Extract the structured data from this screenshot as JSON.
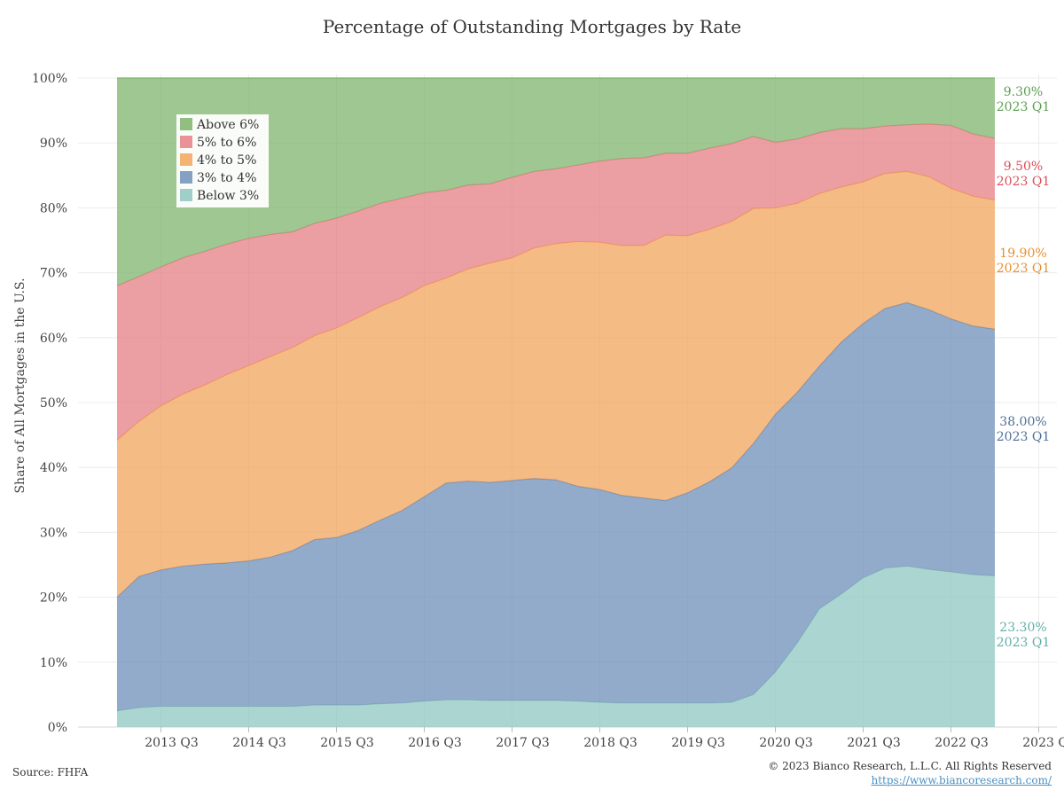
{
  "footer": {
    "source": "Source: FHFA",
    "copyright": "© 2023 Bianco Research, L.L.C. All Rights Reserved",
    "url": "https://www.biancoresearch.com/"
  },
  "chart_data": {
    "type": "area",
    "stacked": true,
    "title": "Percentage of Outstanding Mortgages by Rate",
    "ylabel": "Share of All Mortgages in the U.S.",
    "xlabel": "",
    "ylim": [
      0,
      100
    ],
    "yticks": [
      "0%",
      "10%",
      "20%",
      "30%",
      "40%",
      "50%",
      "60%",
      "70%",
      "80%",
      "90%",
      "100%"
    ],
    "xticks": [
      "2013 Q3",
      "2014 Q3",
      "2015 Q3",
      "2016 Q3",
      "2017 Q3",
      "2018 Q3",
      "2019 Q3",
      "2020 Q3",
      "2021 Q3",
      "2022 Q3",
      "2023 Q3"
    ],
    "x": [
      "2013 Q1",
      "2013 Q2",
      "2013 Q3",
      "2013 Q4",
      "2014 Q1",
      "2014 Q2",
      "2014 Q3",
      "2014 Q4",
      "2015 Q1",
      "2015 Q2",
      "2015 Q3",
      "2015 Q4",
      "2016 Q1",
      "2016 Q2",
      "2016 Q3",
      "2016 Q4",
      "2017 Q1",
      "2017 Q2",
      "2017 Q3",
      "2017 Q4",
      "2018 Q1",
      "2018 Q2",
      "2018 Q3",
      "2018 Q4",
      "2019 Q1",
      "2019 Q2",
      "2019 Q3",
      "2019 Q4",
      "2020 Q1",
      "2020 Q2",
      "2020 Q3",
      "2020 Q4",
      "2021 Q1",
      "2021 Q2",
      "2021 Q3",
      "2021 Q4",
      "2022 Q1",
      "2022 Q2",
      "2022 Q3",
      "2022 Q4",
      "2023 Q1"
    ],
    "grid": true,
    "legend": "top-left",
    "series": [
      {
        "name": "Below 3%",
        "color": "#8fc7c1",
        "values": [
          2.5,
          3,
          3.2,
          3.2,
          3.2,
          3.2,
          3.2,
          3.2,
          3.2,
          3.4,
          3.4,
          3.4,
          3.6,
          3.7,
          4,
          4.2,
          4.2,
          4.1,
          4.1,
          4.1,
          4.1,
          4,
          3.8,
          3.7,
          3.7,
          3.7,
          3.7,
          3.7,
          3.8,
          5,
          8.5,
          13,
          18.2,
          20.5,
          23,
          24.5,
          24.8,
          24.3,
          23.9,
          23.5,
          23.3
        ]
      },
      {
        "name": "3% to 4%",
        "color": "#6f8fb8",
        "values": [
          17.5,
          20.2,
          21,
          21.6,
          21.9,
          22.1,
          22.4,
          23,
          24,
          25.5,
          25.8,
          26.9,
          28.3,
          29.7,
          31.5,
          33.4,
          33.7,
          33.6,
          33.9,
          34.2,
          34,
          33.1,
          32.8,
          32,
          31.6,
          31.2,
          32.4,
          34.1,
          36.1,
          38.7,
          39.7,
          38.6,
          37.4,
          38.8,
          39.2,
          40,
          40.6,
          40,
          39,
          38.3,
          38
        ]
      },
      {
        "name": "4% to 5%",
        "color": "#f2a45c",
        "values": [
          24.2,
          23.9,
          25.3,
          26.5,
          27.6,
          29,
          30.1,
          30.9,
          31.3,
          31.4,
          32.3,
          32.8,
          32.9,
          32.8,
          32.5,
          31.6,
          32.7,
          33.8,
          34.3,
          35.5,
          36.4,
          37.7,
          38.1,
          38.5,
          38.9,
          40.9,
          39.6,
          38.9,
          38,
          36.2,
          31.8,
          29.1,
          26.6,
          23.9,
          21.8,
          20.8,
          20.2,
          20.5,
          20.1,
          20,
          19.9
        ]
      },
      {
        "name": "5% to 6%",
        "color": "#e67f84",
        "values": [
          23.8,
          22.3,
          21.4,
          21,
          20.6,
          20.1,
          19.6,
          18.8,
          17.8,
          17.3,
          16.9,
          16.4,
          15.9,
          15.3,
          14.3,
          13.5,
          12.9,
          12.2,
          12.4,
          11.8,
          11.5,
          11.8,
          12.5,
          13.4,
          13.5,
          12.6,
          12.7,
          12.5,
          12,
          11.1,
          10.1,
          9.9,
          9.4,
          9,
          8.2,
          7.3,
          7.2,
          8.1,
          9.7,
          9.6,
          9.5
        ]
      },
      {
        "name": "Above 6%",
        "color": "#7db46c",
        "values": [
          32,
          30.6,
          29.1,
          27.7,
          26.7,
          25.6,
          24.7,
          24.1,
          23.7,
          22.4,
          21.6,
          20.5,
          19.3,
          18.5,
          17.7,
          17.3,
          16.5,
          16.3,
          15.3,
          14.4,
          14,
          13.4,
          12.8,
          12.4,
          12.3,
          11.6,
          11.6,
          10.8,
          10.1,
          9,
          9.9,
          9.4,
          8.4,
          7.8,
          7.8,
          7.4,
          7.2,
          7.1,
          7.3,
          8.6,
          9.3
        ]
      }
    ],
    "end_labels": [
      {
        "series": "Above 6%",
        "value": "9.30%",
        "period": "2023 Q1",
        "color": "#5aa050"
      },
      {
        "series": "5% to 6%",
        "value": "9.50%",
        "period": "2023 Q1",
        "color": "#d9505a"
      },
      {
        "series": "4% to 5%",
        "value": "19.90%",
        "period": "2023 Q1",
        "color": "#e8902e"
      },
      {
        "series": "3% to 4%",
        "value": "38.00%",
        "period": "2023 Q1",
        "color": "#4f6f99"
      },
      {
        "series": "Below 3%",
        "value": "23.30%",
        "period": "2023 Q1",
        "color": "#5fb0a8"
      }
    ]
  }
}
